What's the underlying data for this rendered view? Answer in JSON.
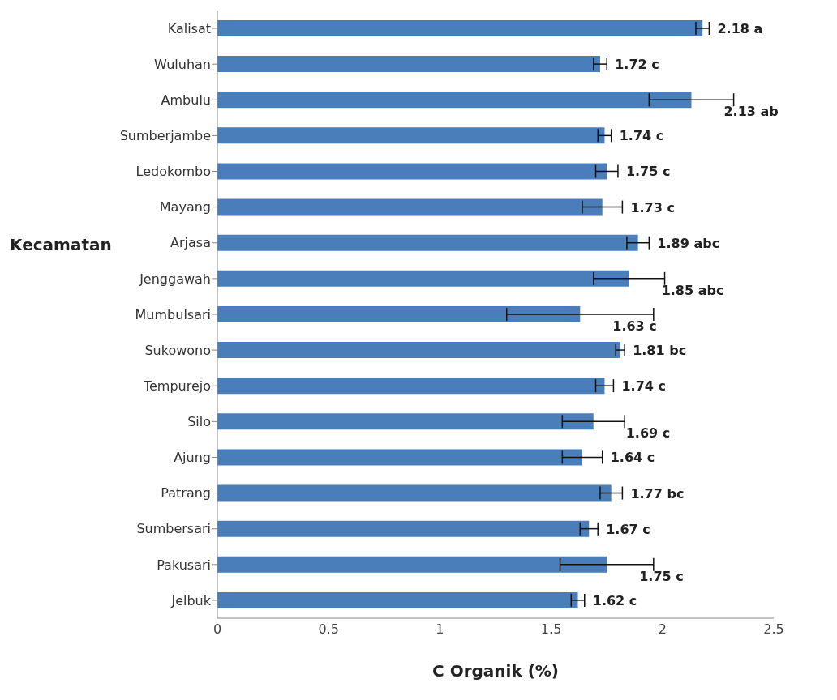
{
  "chart_data": {
    "type": "bar",
    "orientation": "horizontal",
    "xlabel": "C Organik (%)",
    "ylabel": "Kecamatan",
    "categories": [
      "Kalisat",
      "Wuluhan",
      "Ambulu",
      "Sumberjambe",
      "Ledokombo",
      "Mayang",
      "Arjasa",
      "Jenggawah",
      "Mumbulsari",
      "Sukowono",
      "Tempurejo",
      "Silo",
      "Ajung",
      "Patrang",
      "Sumbersari",
      "Pakusari",
      "Jelbuk"
    ],
    "values": [
      2.18,
      1.72,
      2.13,
      1.74,
      1.75,
      1.73,
      1.89,
      1.85,
      1.63,
      1.81,
      1.74,
      1.69,
      1.64,
      1.77,
      1.67,
      1.75,
      1.62
    ],
    "errors": [
      0.03,
      0.03,
      0.19,
      0.03,
      0.05,
      0.09,
      0.05,
      0.16,
      0.33,
      0.02,
      0.04,
      0.14,
      0.09,
      0.05,
      0.04,
      0.21,
      0.03
    ],
    "value_labels": [
      "2.18 a",
      "1.72 c",
      "2.13 ab",
      "1.74 c",
      "1.75 c",
      "1.73 c",
      "1.89 abc",
      "1.85 abc",
      "1.63 c",
      "1.81 bc",
      "1.74 c",
      "1.69 c",
      "1.64 c",
      "1.77 bc",
      "1.67 c",
      "1.75 c",
      "1.62 c"
    ],
    "color": "#4a7ebb",
    "xlim": [
      0,
      2.5
    ],
    "xticks": [
      0,
      0.5,
      1,
      1.5,
      2,
      2.5
    ],
    "grid": false,
    "legend": false
  }
}
